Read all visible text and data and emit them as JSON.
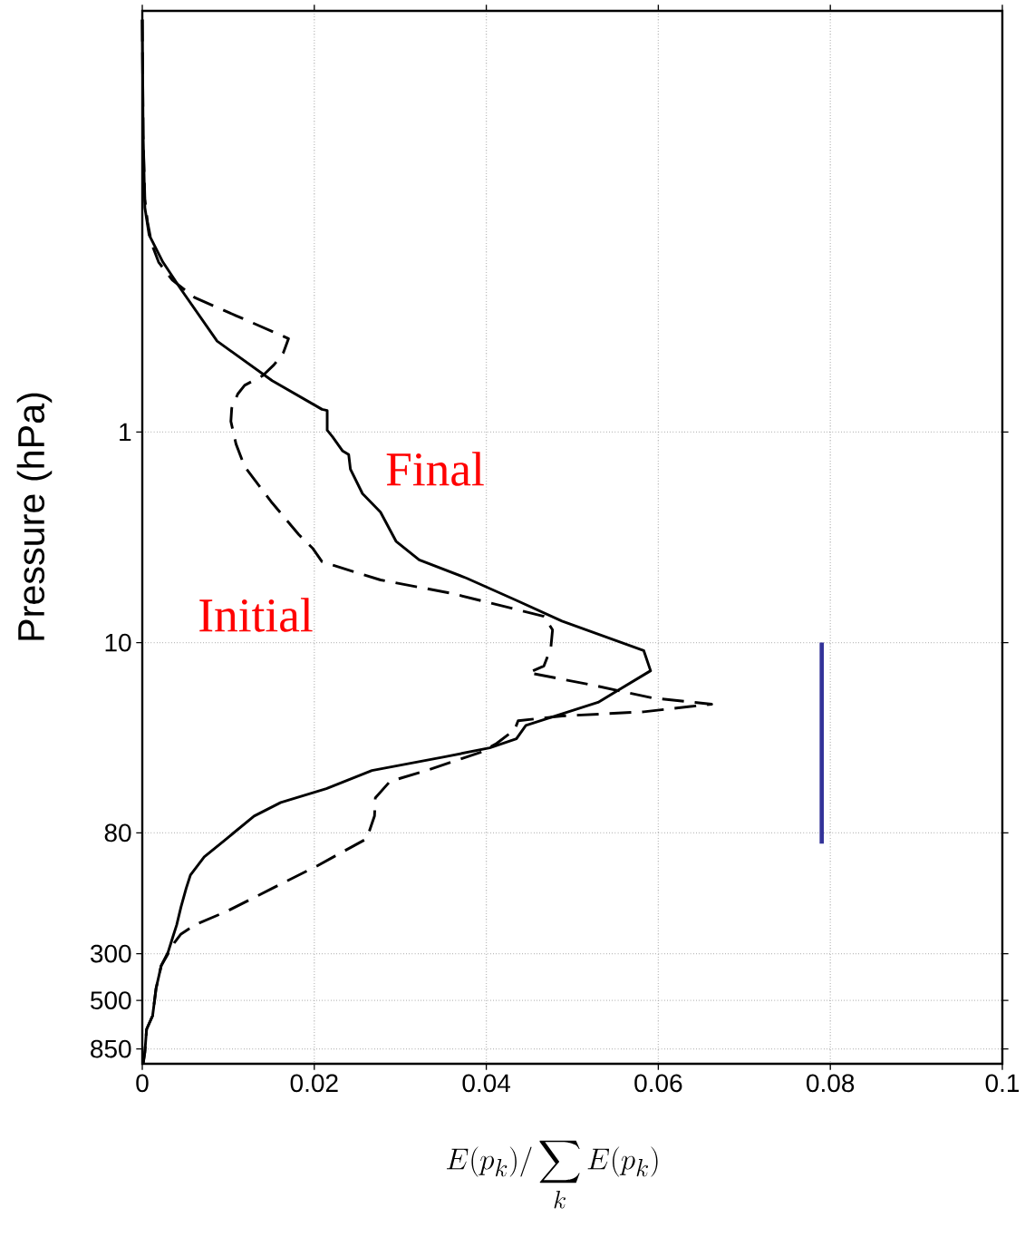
{
  "chart_data": {
    "type": "line",
    "xlabel": "E(p_k)/\\sum_k E(p_k)",
    "ylabel": "Pressure (hPa)",
    "xlim": [
      0,
      0.1
    ],
    "xticks": [
      0,
      0.02,
      0.04,
      0.06,
      0.08,
      0.1
    ],
    "ylim": [
      1000,
      0.01
    ],
    "yticks": [
      1,
      10,
      80,
      300,
      500,
      850
    ],
    "log": "y",
    "grid": true,
    "marker": "none",
    "series": [
      {
        "color": "#000000",
        "line_style": "solid",
        "x": [
          0,
          0.0001,
          0.0003,
          0.0008,
          0.0024,
          0.0045,
          0.0087,
          0.0151,
          0.0209,
          0.0215,
          0.0215,
          0.0221,
          0.0233,
          0.024,
          0.0242,
          0.0256,
          0.0277,
          0.0295,
          0.0322,
          0.0377,
          0.0435,
          0.0488,
          0.0583,
          0.0591,
          0.053,
          0.0446,
          0.0435,
          0.0404,
          0.0351,
          0.0267,
          0.0214,
          0.0161,
          0.013,
          0.0098,
          0.0072,
          0.0056,
          0.0051,
          0.0045,
          0.004,
          0.0035,
          0.003,
          0.0022,
          0.0016,
          0.0012,
          0.0005,
          0.0003,
          0.0001
        ],
        "values": [
          0.011,
          0.039,
          0.086,
          0.116,
          0.156,
          0.21,
          0.37,
          0.57,
          0.78,
          0.79,
          0.98,
          1.05,
          1.23,
          1.28,
          1.5,
          1.96,
          2.4,
          3.3,
          4.05,
          4.94,
          6.3,
          7.9,
          10.9,
          13.6,
          19.2,
          24.7,
          28.6,
          31.6,
          34.9,
          40.5,
          49.4,
          57.4,
          66.6,
          85.3,
          104,
          127,
          147,
          180,
          219,
          254,
          295,
          342,
          439,
          591,
          686,
          879,
          1000
        ]
      },
      {
        "color": "#000000",
        "line_style": "dashed",
        "x": [
          0,
          0.0001,
          0.0003,
          0.0006,
          0.0011,
          0.0019,
          0.0035,
          0.0061,
          0.0109,
          0.017,
          0.0164,
          0.0153,
          0.014,
          0.0119,
          0.0111,
          0.0104,
          0.0103,
          0.0109,
          0.0119,
          0.0151,
          0.0182,
          0.0198,
          0.0209,
          0.0277,
          0.0361,
          0.0467,
          0.0477,
          0.0475,
          0.0467,
          0.0449,
          0.052,
          0.0593,
          0.0662,
          0.0583,
          0.0488,
          0.0437,
          0.0433,
          0.0412,
          0.0393,
          0.033,
          0.0288,
          0.0271,
          0.027,
          0.0261,
          0.0203,
          0.0151,
          0.0098,
          0.0061,
          0.0045,
          0.0037,
          0.0028,
          0.0022,
          0.0016,
          0.0012,
          0.0005,
          0.0003,
          0.0001
        ],
        "values": [
          0.011,
          0.039,
          0.078,
          0.1,
          0.128,
          0.156,
          0.19,
          0.23,
          0.28,
          0.36,
          0.42,
          0.48,
          0.54,
          0.6,
          0.66,
          0.77,
          0.89,
          1.14,
          1.46,
          2.17,
          3.07,
          3.56,
          4.13,
          5.04,
          5.85,
          7.5,
          8.7,
          10.6,
          12.9,
          13.9,
          15.8,
          18.3,
          19.6,
          21.3,
          22.3,
          23.5,
          25.9,
          30.1,
          33.2,
          40.5,
          45.6,
          54.6,
          66.6,
          85.3,
          115,
          147,
          189,
          219,
          242,
          267,
          310,
          342,
          439,
          591,
          686,
          879,
          1000
        ]
      },
      {
        "color": "#333399",
        "line_style": "solid",
        "x": [
          0.079,
          0.079
        ],
        "values": [
          10,
          90
        ]
      }
    ],
    "annotations": [
      "Final",
      "Initial"
    ]
  }
}
